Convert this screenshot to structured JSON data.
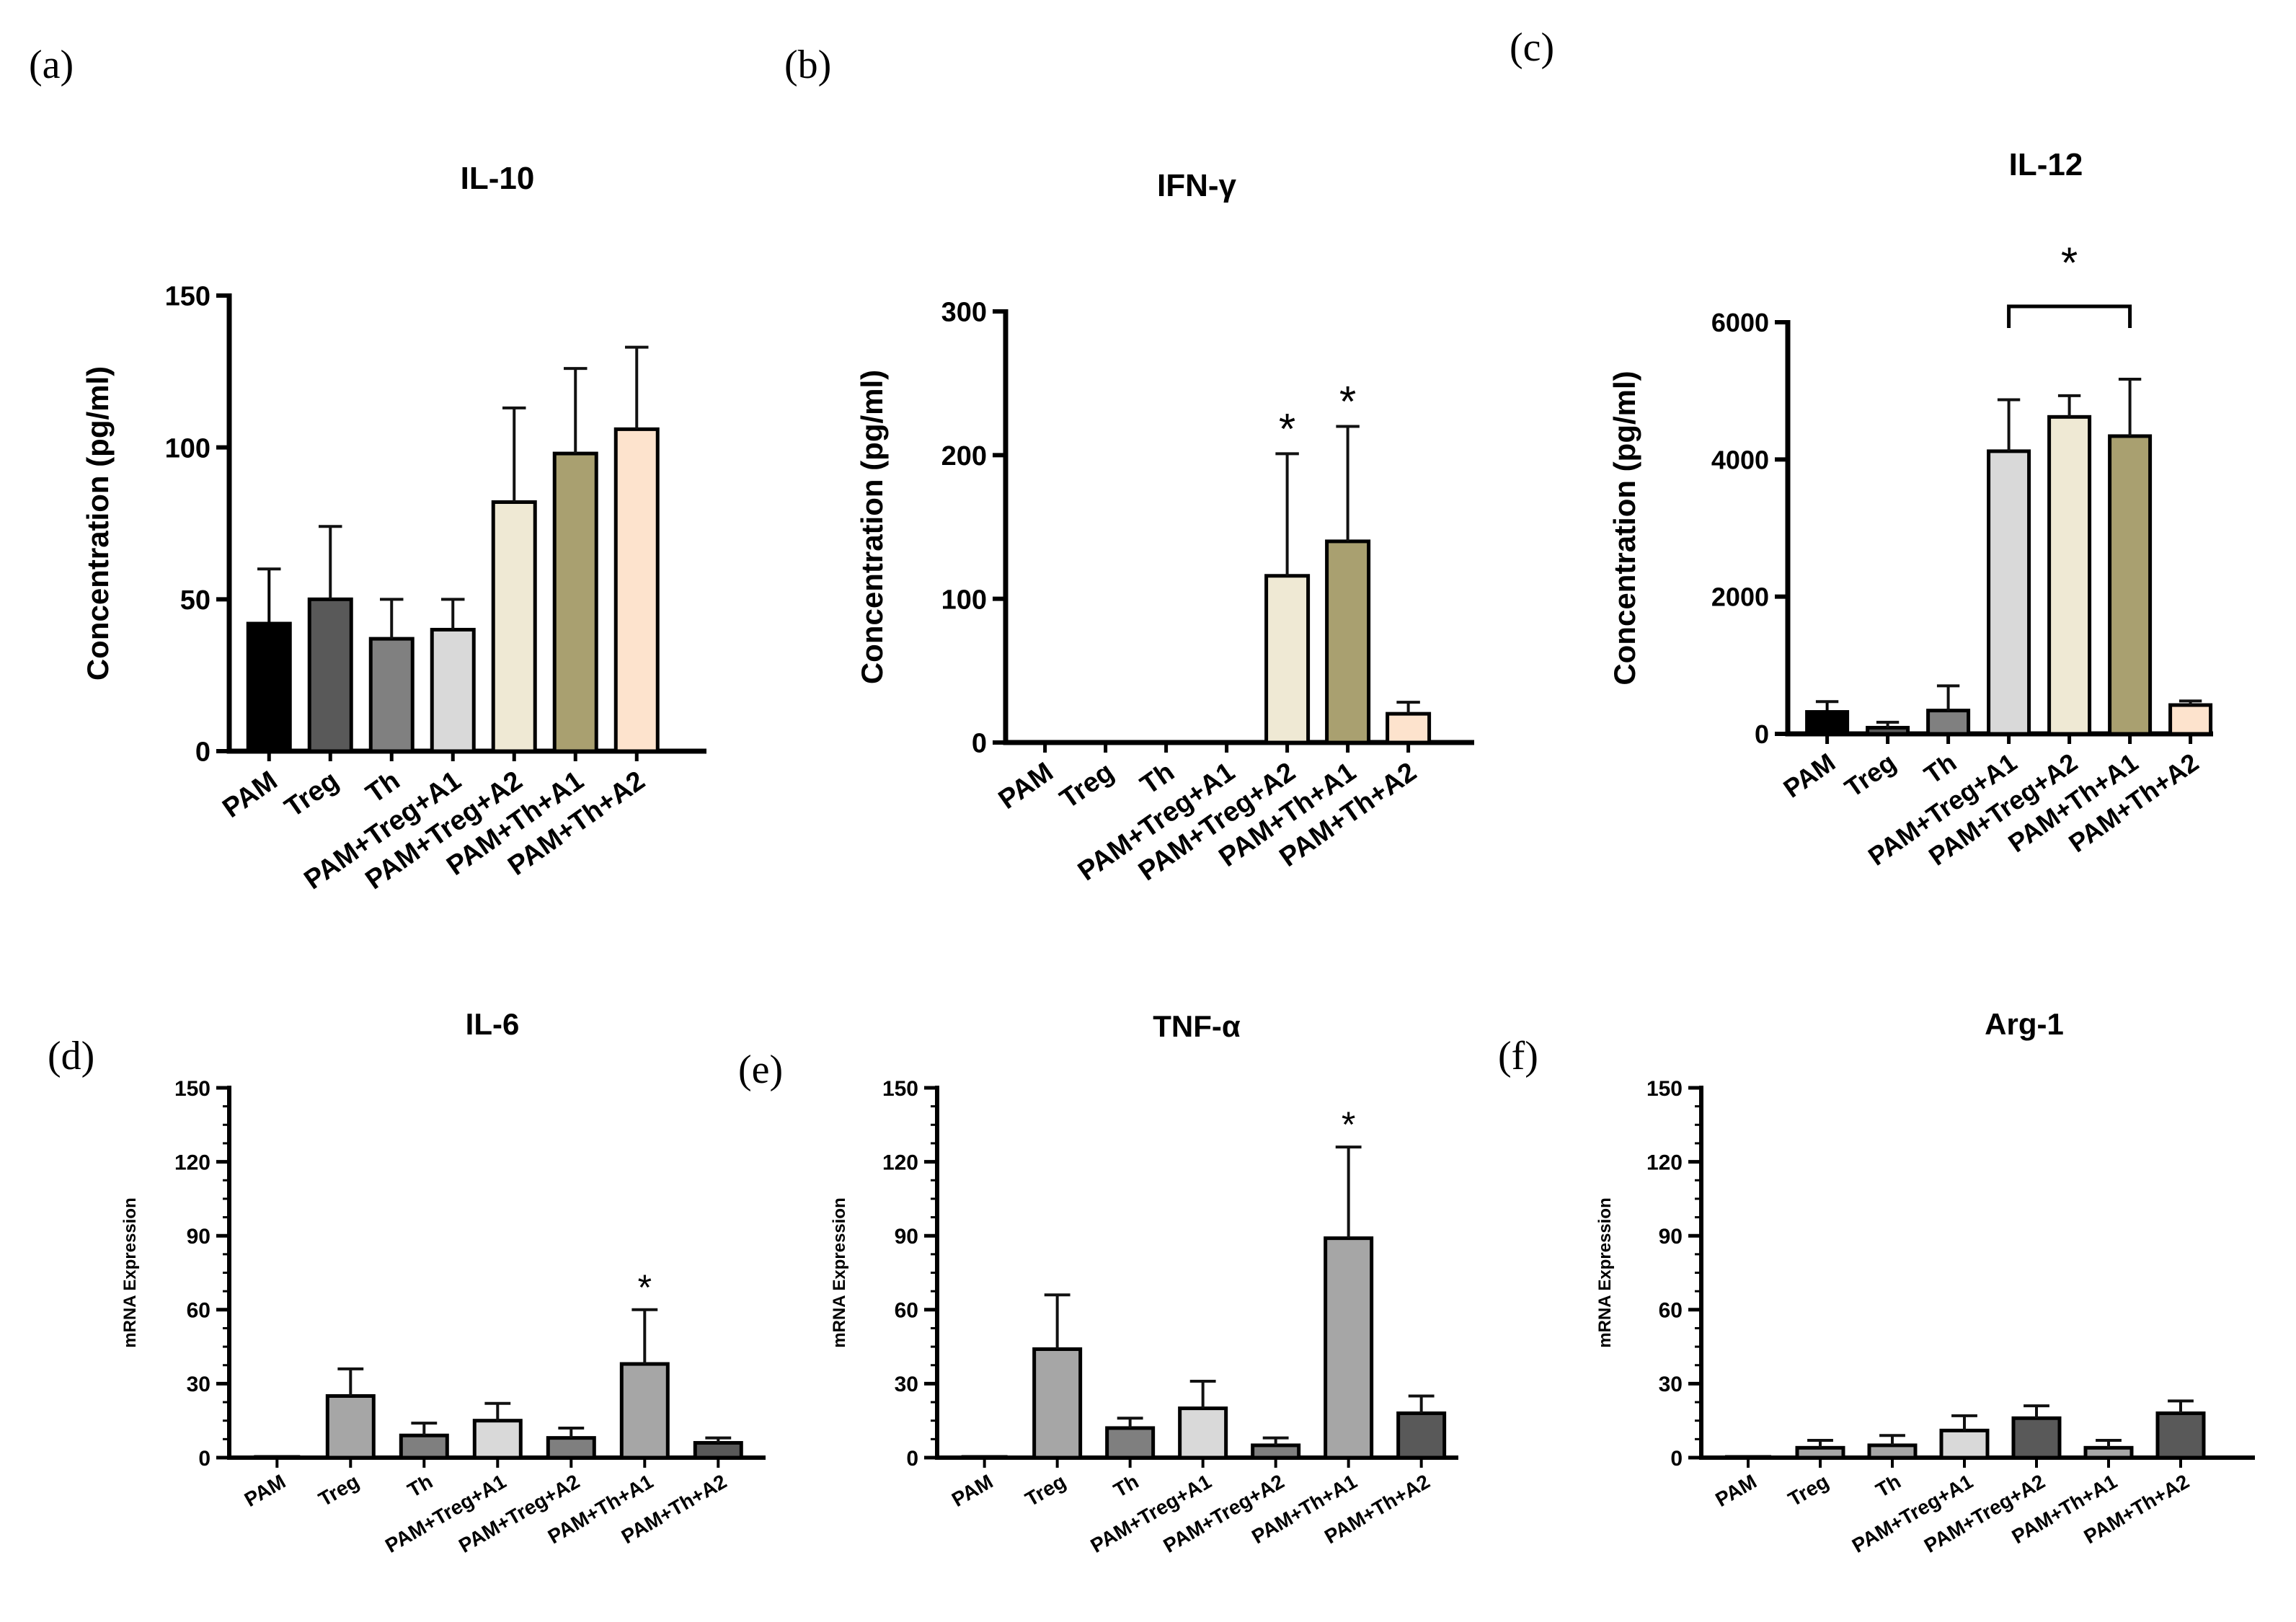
{
  "categories": [
    "PAM",
    "Treg",
    "Th",
    "PAM+Treg+A1",
    "PAM+Treg+A2",
    "PAM+Th+A1",
    "PAM+Th+A2"
  ],
  "chart_data": [
    {
      "panel": "(a)",
      "type": "bar",
      "title": "IL-10",
      "ylabel": "Concentration (pg/ml)",
      "ylim": [
        0,
        150
      ],
      "yticks": [
        "0",
        "50",
        "100",
        "150"
      ],
      "values": [
        42,
        50,
        37,
        40,
        82,
        98,
        106
      ],
      "errors": [
        18,
        24,
        13,
        10,
        31,
        28,
        27
      ],
      "colors": [
        "#000000",
        "#595959",
        "#808080",
        "#d9d9d9",
        "#efe9d4",
        "#a9a070",
        "#fde3cd"
      ],
      "significance": []
    },
    {
      "panel": "(b)",
      "type": "bar",
      "title": "IFN-γ",
      "ylabel": "Concentration (pg/ml)",
      "ylim": [
        0,
        300
      ],
      "yticks": [
        "0",
        "100",
        "200",
        "300"
      ],
      "values": [
        0,
        0,
        0,
        0,
        116,
        140,
        20
      ],
      "errors": [
        0,
        0,
        0,
        0,
        85,
        80,
        8
      ],
      "colors": [
        "#000000",
        "#595959",
        "#808080",
        "#d9d9d9",
        "#efe9d4",
        "#a9a070",
        "#fde3cd"
      ],
      "significance": [
        {
          "index": 4,
          "label": "*"
        },
        {
          "index": 5,
          "label": "*"
        }
      ]
    },
    {
      "panel": "(c)",
      "type": "bar",
      "title": "IL-12",
      "ylabel": "Concentration (pg/ml)",
      "ylim": [
        0,
        6000
      ],
      "yticks": [
        "0",
        "2000",
        "4000",
        "6000"
      ],
      "values": [
        320,
        90,
        340,
        4120,
        4620,
        4340,
        420
      ],
      "errors": [
        150,
        80,
        360,
        750,
        310,
        830,
        60
      ],
      "colors": [
        "#000000",
        "#595959",
        "#808080",
        "#d9d9d9",
        "#efe9d4",
        "#a9a070",
        "#fde3cd"
      ],
      "significance": [
        {
          "bracket": [
            3,
            5
          ],
          "label": "*"
        }
      ]
    },
    {
      "panel": "(d)",
      "type": "bar",
      "title": "IL-6",
      "ylabel": "mRNA Expression",
      "ylim": [
        0,
        150
      ],
      "yticks": [
        "0",
        "30",
        "60",
        "90",
        "120",
        "150"
      ],
      "values": [
        0,
        25,
        9,
        15,
        8,
        38,
        6
      ],
      "errors": [
        0,
        11,
        5,
        7,
        4,
        22,
        2
      ],
      "colors": [
        "#a6a6a6",
        "#a6a6a6",
        "#7f7f7f",
        "#d9d9d9",
        "#7f7f7f",
        "#a6a6a6",
        "#595959"
      ],
      "significance": [
        {
          "index": 5,
          "label": "*"
        }
      ]
    },
    {
      "panel": "(e)",
      "type": "bar",
      "title": "TNF-α",
      "ylabel": "mRNA Expression",
      "ylim": [
        0,
        150
      ],
      "yticks": [
        "0",
        "30",
        "60",
        "90",
        "120",
        "150"
      ],
      "values": [
        0,
        44,
        12,
        20,
        5,
        89,
        18
      ],
      "errors": [
        0,
        22,
        4,
        11,
        3,
        37,
        7
      ],
      "colors": [
        "#a6a6a6",
        "#a6a6a6",
        "#7f7f7f",
        "#d9d9d9",
        "#7f7f7f",
        "#a6a6a6",
        "#595959"
      ],
      "significance": [
        {
          "index": 5,
          "label": "*"
        }
      ]
    },
    {
      "panel": "(f)",
      "type": "bar",
      "title": "Arg-1",
      "ylabel": "mRNA Expression",
      "ylim": [
        0,
        150
      ],
      "yticks": [
        "0",
        "30",
        "60",
        "90",
        "120",
        "150"
      ],
      "values": [
        0,
        4,
        5,
        11,
        16,
        4,
        18
      ],
      "errors": [
        0,
        3,
        4,
        6,
        5,
        3,
        5
      ],
      "colors": [
        "#a6a6a6",
        "#a6a6a6",
        "#a6a6a6",
        "#d9d9d9",
        "#595959",
        "#a6a6a6",
        "#595959"
      ],
      "significance": []
    }
  ]
}
